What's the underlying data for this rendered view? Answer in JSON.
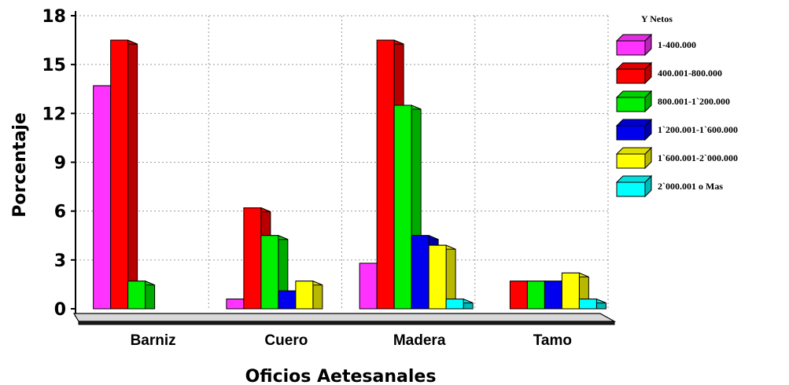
{
  "chart_data": {
    "type": "bar",
    "title": "",
    "xlabel": "Oficios Aetesanales",
    "ylabel": "Porcentaje",
    "ylim": [
      0,
      18
    ],
    "yticks": [
      "0",
      "3",
      "6",
      "9",
      "12",
      "15",
      "18"
    ],
    "categories": [
      "Barniz",
      "Cuero",
      "Madera",
      "Tamo"
    ],
    "legend_title": "Y Netos",
    "legend_position": "right",
    "grid": true,
    "series": [
      {
        "name": "1-400.000",
        "color": "#ff33ff",
        "values": [
          13.7,
          0.6,
          2.8,
          0
        ]
      },
      {
        "name": "400.001-800.000",
        "color": "#ff0000",
        "values": [
          16.5,
          6.2,
          16.5,
          1.7
        ]
      },
      {
        "name": "800.001-1`200.000",
        "color": "#00ee00",
        "values": [
          1.7,
          4.5,
          12.5,
          1.7
        ]
      },
      {
        "name": "1`200.001-1`600.000",
        "color": "#0000ee",
        "values": [
          0,
          1.1,
          4.5,
          1.7
        ]
      },
      {
        "name": "1`600.001-2`000.000",
        "color": "#ffff00",
        "values": [
          0,
          1.7,
          3.9,
          2.2
        ]
      },
      {
        "name": "2`000.001 o Mas",
        "color": "#00ffff",
        "values": [
          0,
          0,
          0.6,
          0.6
        ]
      }
    ]
  }
}
